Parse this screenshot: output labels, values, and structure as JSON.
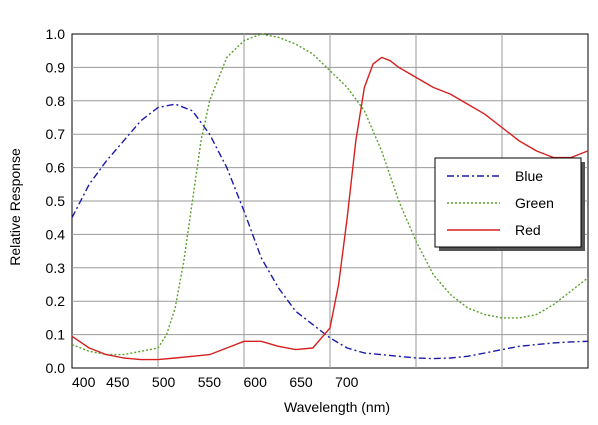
{
  "chart_data": {
    "type": "line",
    "xlabel": "Wavelength (nm)",
    "ylabel": "Relative Response",
    "xlim": [
      400,
      1000
    ],
    "ylim": [
      0,
      1.0
    ],
    "x_ticks": [
      "400",
      "450",
      "500",
      "550",
      "600",
      "650",
      "700"
    ],
    "y_ticks": [
      "0.0",
      "0.1",
      "0.2",
      "0.3",
      "0.4",
      "0.5",
      "0.6",
      "0.7",
      "0.8",
      "0.9",
      "1.0"
    ],
    "grid": true,
    "legend_position": "right",
    "series": [
      {
        "name": "Blue",
        "color": "#1a1aaa",
        "style": "dashdot",
        "x": [
          400,
          420,
          440,
          460,
          480,
          500,
          520,
          540,
          560,
          580,
          600,
          620,
          640,
          660,
          680,
          700,
          720,
          740,
          760,
          780,
          800,
          820,
          840,
          860,
          880,
          900,
          920,
          940,
          960,
          980,
          1000
        ],
        "y": [
          0.45,
          0.55,
          0.62,
          0.68,
          0.74,
          0.78,
          0.79,
          0.77,
          0.7,
          0.6,
          0.47,
          0.33,
          0.24,
          0.17,
          0.13,
          0.09,
          0.06,
          0.045,
          0.04,
          0.035,
          0.03,
          0.028,
          0.03,
          0.035,
          0.045,
          0.055,
          0.065,
          0.07,
          0.075,
          0.078,
          0.08
        ]
      },
      {
        "name": "Green",
        "color": "#5aa02c",
        "style": "dotted",
        "x": [
          400,
          420,
          440,
          460,
          480,
          500,
          510,
          520,
          530,
          540,
          550,
          560,
          580,
          600,
          620,
          640,
          660,
          680,
          700,
          720,
          740,
          760,
          780,
          800,
          820,
          840,
          860,
          880,
          900,
          920,
          940,
          960,
          980,
          1000
        ],
        "y": [
          0.07,
          0.05,
          0.04,
          0.04,
          0.05,
          0.06,
          0.1,
          0.18,
          0.32,
          0.5,
          0.68,
          0.8,
          0.93,
          0.98,
          1.0,
          0.99,
          0.97,
          0.94,
          0.89,
          0.84,
          0.77,
          0.65,
          0.5,
          0.38,
          0.28,
          0.22,
          0.18,
          0.16,
          0.15,
          0.15,
          0.16,
          0.19,
          0.23,
          0.27
        ]
      },
      {
        "name": "Red",
        "color": "#d62020",
        "style": "solid",
        "x": [
          400,
          420,
          440,
          460,
          480,
          500,
          520,
          540,
          560,
          580,
          600,
          620,
          640,
          660,
          680,
          700,
          710,
          720,
          730,
          740,
          750,
          760,
          770,
          780,
          800,
          820,
          840,
          860,
          880,
          900,
          920,
          940,
          960,
          980,
          1000
        ],
        "y": [
          0.095,
          0.06,
          0.04,
          0.03,
          0.025,
          0.025,
          0.03,
          0.035,
          0.04,
          0.06,
          0.08,
          0.08,
          0.065,
          0.055,
          0.06,
          0.12,
          0.25,
          0.45,
          0.68,
          0.84,
          0.91,
          0.93,
          0.92,
          0.9,
          0.87,
          0.84,
          0.82,
          0.79,
          0.76,
          0.72,
          0.68,
          0.65,
          0.63,
          0.63,
          0.65
        ]
      }
    ]
  }
}
